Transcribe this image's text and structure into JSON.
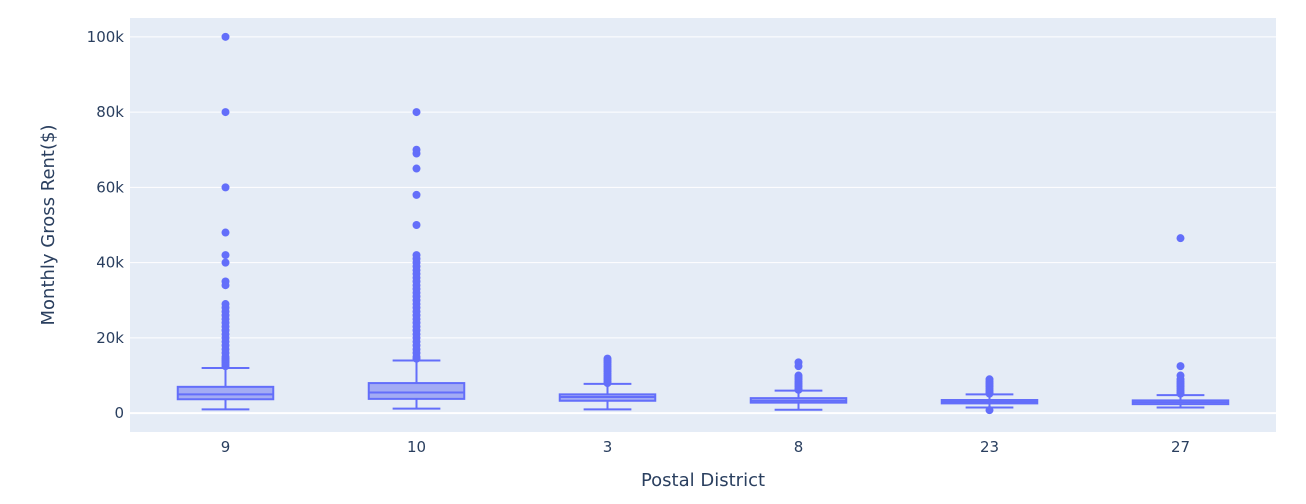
{
  "chart_data": {
    "type": "box",
    "xlabel": "Postal District",
    "ylabel": "Monthly Gross Rent($)",
    "ylim": [
      -5000,
      105000
    ],
    "yticks": [
      0,
      20000,
      40000,
      60000,
      80000,
      100000
    ],
    "ytick_labels": [
      "0",
      "20k",
      "40k",
      "60k",
      "80k",
      "100k"
    ],
    "grid": true,
    "colors": {
      "plot_bg": "#e5ecf6",
      "grid": "#ffffff",
      "box_fill": "#a3abf4",
      "box_line": "#636efa",
      "text": "#2a3f5f"
    },
    "categories": [
      "9",
      "10",
      "3",
      "8",
      "23",
      "27"
    ],
    "boxes": [
      {
        "category": "9",
        "min": 1000,
        "q1": 3700,
        "median": 5000,
        "q3": 7000,
        "whisker_high": 12000,
        "outliers": [
          100000,
          80000,
          60000,
          48000,
          42000,
          40000,
          35000,
          34000,
          29000,
          28000,
          27000,
          26000,
          25000,
          24000,
          23000,
          22000,
          21000,
          20000,
          19000,
          18000,
          17000,
          16000,
          15000,
          14500,
          14000,
          13500,
          13000,
          12500
        ]
      },
      {
        "category": "10",
        "min": 1200,
        "q1": 3800,
        "median": 5500,
        "q3": 8000,
        "whisker_high": 14000,
        "outliers": [
          80000,
          70000,
          69000,
          65000,
          58000,
          50000,
          42000,
          41000,
          40000,
          39000,
          38000,
          37000,
          36000,
          35000,
          34000,
          33000,
          32000,
          31000,
          30000,
          29000,
          28000,
          27000,
          26000,
          25000,
          24000,
          23000,
          22000,
          21000,
          20000,
          19000,
          18000,
          17000,
          16000,
          15000,
          14500
        ]
      },
      {
        "category": "3",
        "min": 1000,
        "q1": 3300,
        "median": 4300,
        "q3": 5000,
        "whisker_high": 7800,
        "outliers": [
          14500,
          14000,
          13500,
          13000,
          12500,
          12000,
          11500,
          11000,
          10500,
          10000,
          9500,
          9000,
          8500,
          8000
        ]
      },
      {
        "category": "8",
        "min": 900,
        "q1": 2800,
        "median": 3300,
        "q3": 4000,
        "whisker_high": 6000,
        "outliers": [
          13500,
          12500,
          10000,
          9500,
          9000,
          8500,
          8000,
          7500,
          7000,
          6500,
          6200
        ]
      },
      {
        "category": "23",
        "min": 1500,
        "q1": 2600,
        "median": 3000,
        "q3": 3500,
        "whisker_high": 5000,
        "outliers": [
          9000,
          8500,
          8000,
          7500,
          7000,
          6500,
          6000,
          5500,
          5200,
          800
        ]
      },
      {
        "category": "27",
        "min": 1500,
        "q1": 2400,
        "median": 2900,
        "q3": 3400,
        "whisker_high": 4800,
        "outliers": [
          46500,
          12500,
          10000,
          9000,
          8500,
          8000,
          7500,
          7000,
          6500,
          6000,
          5500,
          5200
        ]
      }
    ]
  }
}
